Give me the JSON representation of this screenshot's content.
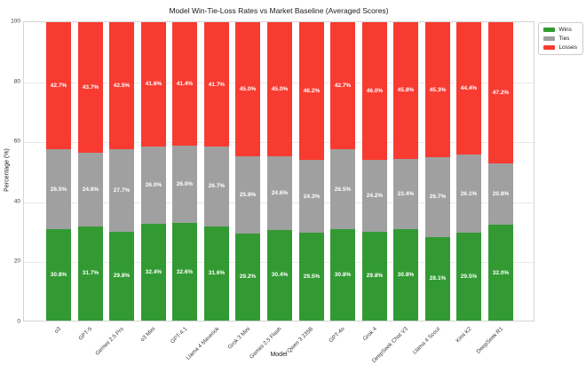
{
  "title": "Model Win-Tie-Loss Rates vs Market Baseline (Averaged Scores)",
  "chart_data": {
    "type": "bar",
    "stacked": true,
    "title": "Model Win-Tie-Loss Rates vs Market Baseline (Averaged Scores)",
    "xlabel": "Model",
    "ylabel": "Percentage (%)",
    "ylim": [
      0,
      100
    ],
    "yticks": [
      0,
      20,
      40,
      60,
      80,
      100
    ],
    "grid": true,
    "legend_position": "outside-right",
    "categories": [
      "o3",
      "GPT-5",
      "Gemini 2.5 Pro",
      "o3 Mini",
      "GPT-4.1",
      "Llama 4 Maverick",
      "Grok 3 Mini",
      "Gemini 2.5 Flash",
      "Qwen 3 235B",
      "GPT-4o",
      "Grok 4",
      "DeepSeek Chat V3",
      "Llama 4 Scout",
      "Kimi K2",
      "DeepSeek R1"
    ],
    "series": [
      {
        "name": "Wins",
        "color": "#339a33",
        "values": [
          30.8,
          31.7,
          29.8,
          32.4,
          32.6,
          31.6,
          29.2,
          30.4,
          29.5,
          30.8,
          29.8,
          30.8,
          28.1,
          29.5,
          32.0
        ]
      },
      {
        "name": "Ties",
        "color": "#a0a0a0",
        "values": [
          26.5,
          24.6,
          27.7,
          26.0,
          26.0,
          26.7,
          25.8,
          24.6,
          24.3,
          26.5,
          24.2,
          23.4,
          26.7,
          26.1,
          20.8
        ]
      },
      {
        "name": "Losses",
        "color": "#f83b31",
        "values": [
          42.7,
          43.7,
          42.5,
          41.6,
          41.4,
          41.7,
          45.0,
          45.0,
          46.2,
          42.7,
          46.0,
          45.8,
          45.3,
          44.4,
          47.2
        ]
      }
    ],
    "value_label_format": "{value}%"
  },
  "legend": {
    "items": [
      {
        "label": "Wins",
        "color": "#339a33"
      },
      {
        "label": "Ties",
        "color": "#a0a0a0"
      },
      {
        "label": "Losses",
        "color": "#f83b31"
      }
    ]
  }
}
